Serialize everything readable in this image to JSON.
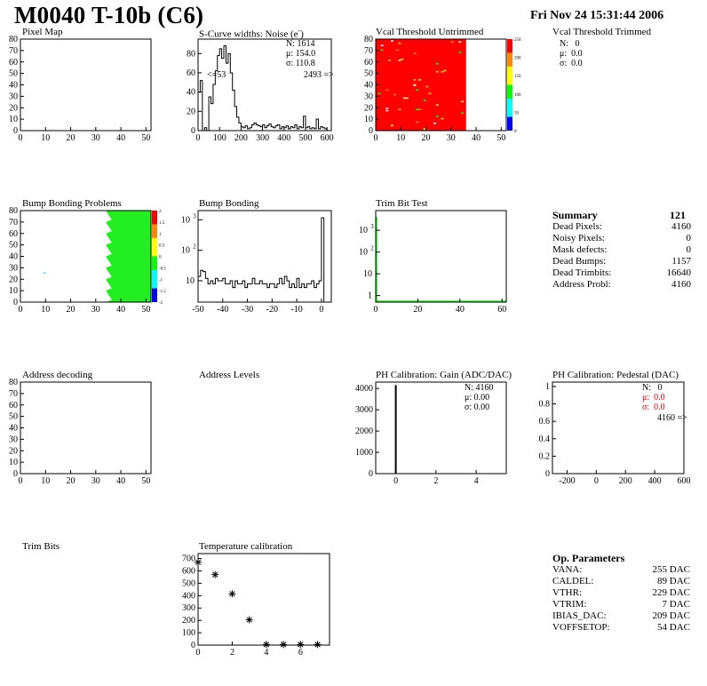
{
  "header": {
    "title": "M0040 T-10b (C6)",
    "date": "Fri Nov 24 15:31:44 2006"
  },
  "panels": {
    "pixel_map": {
      "title": "Pixel Map"
    },
    "scurve": {
      "title": "S-Curve widths: Noise (e",
      "title_sup": "-",
      "title_end": ")",
      "stats": [
        {
          "k": "N:",
          "v": "1614"
        },
        {
          "k": "μ:",
          "v": "154.0"
        },
        {
          "k": "σ:",
          "v": "110.8"
        }
      ],
      "underflow": "<=53",
      "overflow": "2493 =>"
    },
    "vcal_untrimmed": {
      "title": "Vcal Threshold Untrimmed",
      "palette_ticks": [
        "250",
        "200",
        "150",
        "100",
        "50",
        "0"
      ]
    },
    "vcal_trimmed": {
      "title": "Vcal Threshold Trimmed",
      "stats": [
        {
          "k": "N:",
          "v": "0"
        },
        {
          "k": "μ:",
          "v": "0.0"
        },
        {
          "k": "σ:",
          "v": "0.0"
        }
      ]
    },
    "bump_problems": {
      "title": "Bump Bonding Problems",
      "palette_ticks": [
        "2",
        "1.5",
        "1",
        "0.5",
        "0",
        "-0.5",
        "-1",
        "-1.5",
        "-2"
      ]
    },
    "bump_bonding": {
      "title": "Bump Bonding"
    },
    "trim_bit_test": {
      "title": "Trim Bit Test"
    },
    "address_decoding": {
      "title": "Address decoding"
    },
    "address_levels": {
      "title": "Address Levels"
    },
    "ph_gain": {
      "title": "PH Calibration: Gain (ADC/DAC)",
      "stats": [
        {
          "k": "N:",
          "v": "4160"
        },
        {
          "k": "μ:",
          "v": "0.00"
        },
        {
          "k": "σ:",
          "v": "0.00"
        }
      ]
    },
    "ph_pedestal": {
      "title": "PH Calibration: Pedestal (DAC)",
      "stats": [
        {
          "k": "N:",
          "v": "0"
        },
        {
          "k": "μ:",
          "v": "0.0"
        },
        {
          "k": "σ:",
          "v": "0.0"
        }
      ],
      "overflow": "4160 =>"
    },
    "trim_bits": {
      "title": "Trim Bits"
    },
    "temperature": {
      "title": "Temperature calibration"
    }
  },
  "summary": {
    "title": "Summary",
    "total": "121",
    "rows": [
      {
        "label": "Dead Pixels:",
        "value": "4160"
      },
      {
        "label": "Noisy Pixels:",
        "value": "0"
      },
      {
        "label": "Mask defects:",
        "value": "0"
      },
      {
        "label": "Dead Bumps:",
        "value": "1157"
      },
      {
        "label": "Dead Trimbits:",
        "value": "16640"
      },
      {
        "label": "Address Probl:",
        "value": "4160"
      }
    ]
  },
  "op_params": {
    "title": "Op. Parameters",
    "rows": [
      {
        "label": "VANA:",
        "value": "255 DAC"
      },
      {
        "label": "CALDEL:",
        "value": "89 DAC"
      },
      {
        "label": "VTHR:",
        "value": "229 DAC"
      },
      {
        "label": "VTRIM:",
        "value": "7 DAC"
      },
      {
        "label": "IBIAS_DAC:",
        "value": "209 DAC"
      },
      {
        "label": "VOFFSETOP:",
        "value": "54 DAC"
      }
    ]
  },
  "chart_data": [
    {
      "id": "pixel_map",
      "type": "heatmap",
      "title": "Pixel Map",
      "xlim": [
        0,
        52
      ],
      "ylim": [
        0,
        80
      ],
      "xticks": [
        0,
        10,
        20,
        30,
        40,
        50
      ],
      "yticks": [
        0,
        10,
        20,
        30,
        40,
        50,
        60,
        70,
        80
      ],
      "values": []
    },
    {
      "id": "scurve",
      "type": "histogram",
      "title": "S-Curve widths: Noise (e-)",
      "xlim": [
        0,
        620
      ],
      "ylim": [
        0,
        95
      ],
      "xticks": [
        0,
        100,
        200,
        300,
        400,
        500,
        600
      ],
      "yticks": [
        0,
        20,
        40,
        60,
        80
      ],
      "bins": [
        [
          0,
          40
        ],
        [
          10,
          52
        ],
        [
          20,
          0
        ],
        [
          30,
          3
        ],
        [
          40,
          0
        ],
        [
          50,
          35
        ],
        [
          60,
          28
        ],
        [
          70,
          48
        ],
        [
          80,
          62
        ],
        [
          90,
          78
        ],
        [
          100,
          85
        ],
        [
          110,
          75
        ],
        [
          120,
          88
        ],
        [
          130,
          70
        ],
        [
          140,
          80
        ],
        [
          150,
          60
        ],
        [
          160,
          42
        ],
        [
          170,
          25
        ],
        [
          180,
          14
        ],
        [
          190,
          8
        ],
        [
          200,
          4
        ],
        [
          210,
          3
        ],
        [
          220,
          5
        ],
        [
          230,
          2
        ],
        [
          240,
          3
        ],
        [
          250,
          6
        ],
        [
          260,
          8
        ],
        [
          270,
          6
        ],
        [
          280,
          5
        ],
        [
          290,
          4
        ],
        [
          300,
          6
        ],
        [
          310,
          3
        ],
        [
          320,
          5
        ],
        [
          330,
          7
        ],
        [
          340,
          4
        ],
        [
          350,
          3
        ],
        [
          360,
          5
        ],
        [
          370,
          6
        ],
        [
          380,
          2
        ],
        [
          390,
          4
        ],
        [
          400,
          3
        ],
        [
          410,
          5
        ],
        [
          420,
          2
        ],
        [
          430,
          4
        ],
        [
          440,
          3
        ],
        [
          450,
          6
        ],
        [
          460,
          2
        ],
        [
          470,
          4
        ],
        [
          480,
          3
        ],
        [
          490,
          15
        ],
        [
          500,
          3
        ],
        [
          510,
          4
        ],
        [
          520,
          2
        ],
        [
          530,
          3
        ],
        [
          540,
          2
        ],
        [
          550,
          12
        ],
        [
          560,
          2
        ],
        [
          570,
          4
        ],
        [
          580,
          3
        ],
        [
          590,
          2
        ],
        [
          600,
          0
        ]
      ]
    },
    {
      "id": "vcal_untrimmed",
      "type": "heatmap",
      "title": "Vcal Threshold Untrimmed",
      "xlim": [
        0,
        52
      ],
      "ylim": [
        0,
        80
      ],
      "xticks": [
        0,
        10,
        20,
        30,
        40,
        50
      ],
      "yticks": [
        0,
        10,
        20,
        30,
        40,
        50,
        60,
        70,
        80
      ],
      "zlim": [
        0,
        250
      ],
      "fill": "red up to column 35; mostly white beyond"
    },
    {
      "id": "bump_problems",
      "type": "heatmap",
      "title": "Bump Bonding Problems",
      "xlim": [
        0,
        52
      ],
      "ylim": [
        0,
        80
      ],
      "xticks": [
        0,
        10,
        20,
        30,
        40,
        50
      ],
      "yticks": [
        0,
        10,
        20,
        30,
        40,
        50,
        60,
        70,
        80
      ],
      "zlim": [
        -2,
        2
      ],
      "fill": "green from column 34 to 52"
    },
    {
      "id": "bump_bonding",
      "type": "histogram",
      "title": "Bump Bonding",
      "xlim": [
        -50,
        4
      ],
      "log_y": true,
      "xticks": [
        -50,
        -40,
        -30,
        -20,
        -10,
        0
      ],
      "yticks": [
        10,
        100,
        1000
      ],
      "bins": [
        [
          -50,
          14
        ],
        [
          -49,
          22
        ],
        [
          -48,
          20
        ],
        [
          -47,
          12
        ],
        [
          -46,
          8
        ],
        [
          -45,
          10
        ],
        [
          -44,
          8
        ],
        [
          -43,
          12
        ],
        [
          -42,
          10
        ],
        [
          -41,
          10
        ],
        [
          -40,
          12
        ],
        [
          -39,
          8
        ],
        [
          -38,
          8
        ],
        [
          -37,
          10
        ],
        [
          -36,
          6
        ],
        [
          -35,
          10
        ],
        [
          -34,
          8
        ],
        [
          -33,
          8
        ],
        [
          -32,
          10
        ],
        [
          -31,
          6
        ],
        [
          -30,
          8
        ],
        [
          -29,
          8
        ],
        [
          -28,
          12
        ],
        [
          -27,
          8
        ],
        [
          -26,
          8
        ],
        [
          -25,
          10
        ],
        [
          -24,
          8
        ],
        [
          -23,
          8
        ],
        [
          -22,
          6
        ],
        [
          -21,
          8
        ],
        [
          -20,
          8
        ],
        [
          -19,
          6
        ],
        [
          -18,
          8
        ],
        [
          -17,
          12
        ],
        [
          -16,
          8
        ],
        [
          -15,
          14
        ],
        [
          -14,
          10
        ],
        [
          -13,
          6
        ],
        [
          -12,
          8
        ],
        [
          -11,
          6
        ],
        [
          -10,
          12
        ],
        [
          -9,
          6
        ],
        [
          -8,
          8
        ],
        [
          -7,
          6
        ],
        [
          -6,
          8
        ],
        [
          -5,
          8
        ],
        [
          -4,
          10
        ],
        [
          -3,
          6
        ],
        [
          -2,
          8
        ],
        [
          -1,
          10
        ],
        [
          0,
          1157
        ],
        [
          1,
          0
        ]
      ]
    },
    {
      "id": "trim_bit_test",
      "type": "histogram",
      "title": "Trim Bit Test",
      "xlim": [
        0,
        62
      ],
      "log_y": true,
      "xticks": [
        0,
        20,
        40,
        60
      ],
      "yticks": [
        1,
        10,
        100,
        1000
      ],
      "bins": [
        [
          0,
          4160
        ]
      ]
    },
    {
      "id": "address_decoding",
      "type": "heatmap",
      "title": "Address decoding",
      "xlim": [
        0,
        52
      ],
      "ylim": [
        0,
        80
      ],
      "xticks": [
        0,
        10,
        20,
        30,
        40,
        50
      ],
      "yticks": [
        0,
        10,
        20,
        30,
        40,
        50,
        60,
        70,
        80
      ],
      "values": []
    },
    {
      "id": "ph_gain",
      "type": "histogram",
      "title": "PH Calibration: Gain (ADC/DAC)",
      "xlim": [
        -1,
        5.5
      ],
      "ylim": [
        0,
        4300
      ],
      "xticks": [
        0,
        2,
        4
      ],
      "yticks": [
        0,
        1000,
        2000,
        3000,
        4000
      ],
      "bins": [
        [
          0,
          4160
        ]
      ]
    },
    {
      "id": "ph_pedestal",
      "type": "histogram",
      "title": "PH Calibration: Pedestal (DAC)",
      "xlim": [
        -300,
        600
      ],
      "ylim": [
        0,
        1.05
      ],
      "xticks": [
        -200,
        0,
        200,
        400,
        600
      ],
      "yticks": [
        0,
        0.2,
        0.4,
        0.6,
        0.8,
        1
      ],
      "bins": []
    },
    {
      "id": "temperature",
      "type": "scatter",
      "title": "Temperature calibration",
      "xlim": [
        0,
        7.7
      ],
      "ylim": [
        0,
        740
      ],
      "xticks": [
        0,
        2,
        4,
        6
      ],
      "yticks": [
        0,
        100,
        200,
        300,
        400,
        500,
        600,
        700
      ],
      "x": [
        0,
        1,
        2,
        3,
        4,
        5,
        6,
        7
      ],
      "y": [
        670,
        570,
        415,
        205,
        5,
        5,
        5,
        5
      ]
    }
  ]
}
